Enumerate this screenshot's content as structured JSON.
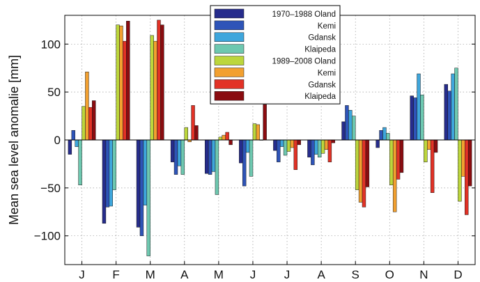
{
  "chart_data": {
    "type": "bar",
    "ylabel": "Mean sea level anomalie [mm]",
    "ylim": [
      -130,
      130
    ],
    "yticks": [
      -100,
      -50,
      0,
      50,
      100
    ],
    "grid": true,
    "legend_placement": "top-center",
    "categories": [
      "J",
      "F",
      "M",
      "A",
      "M",
      "J",
      "J",
      "A",
      "S",
      "O",
      "N",
      "D"
    ],
    "series": [
      {
        "name": "1970–1988 Oland",
        "color": "#262c8c",
        "values": [
          -15,
          -87,
          -91,
          -23,
          -35,
          -24,
          -11,
          -18,
          19,
          -8,
          46,
          58
        ]
      },
      {
        "name": "Kemi",
        "color": "#2e54b8",
        "values": [
          10,
          -70,
          -100,
          -36,
          -36,
          -48,
          -23,
          -26,
          36,
          10,
          44,
          51
        ]
      },
      {
        "name": "Gdansk",
        "color": "#3ea6dc",
        "values": [
          -7,
          -69,
          -68,
          -27,
          -33,
          -13,
          -7,
          -15,
          31,
          13,
          69,
          69
        ]
      },
      {
        "name": "Klaipeda",
        "color": "#6ec8b0",
        "values": [
          -47,
          -52,
          -121,
          -36,
          -57,
          -38,
          -16,
          -18,
          25,
          7,
          47,
          75
        ]
      },
      {
        "name": "1989–2008 Oland",
        "color": "#bcd63c",
        "values": [
          35,
          120,
          109,
          13,
          3,
          17,
          -12,
          -14,
          -52,
          -47,
          -23,
          -64
        ]
      },
      {
        "name": "Kemi",
        "color": "#f2a030",
        "values": [
          71,
          119,
          103,
          -2,
          5,
          16,
          -8,
          -10,
          -65,
          -75,
          -10,
          -38
        ]
      },
      {
        "name": "Gdansk",
        "color": "#e23226",
        "values": [
          34,
          103,
          125,
          36,
          8,
          0,
          -31,
          -23,
          -70,
          -41,
          -55,
          -78
        ]
      },
      {
        "name": "Klaipeda",
        "color": "#8a0c10",
        "values": [
          41,
          124,
          120,
          15,
          -5,
          37,
          -5,
          -3,
          -49,
          -34,
          -13,
          -48
        ]
      }
    ]
  }
}
